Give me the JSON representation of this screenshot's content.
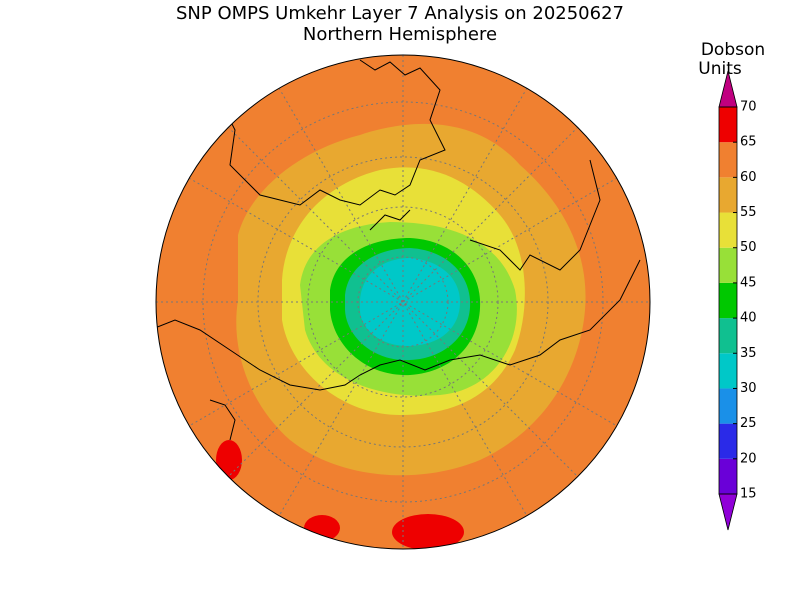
{
  "title": "SNP OMPS Umkehr Layer 7 Analysis on 20250627",
  "subtitle": "Northern Hemisphere",
  "colorbar": {
    "label_lines": [
      "Dobson",
      "Units"
    ],
    "ticks": [
      15,
      20,
      25,
      30,
      35,
      40,
      45,
      50,
      55,
      60,
      65,
      70
    ],
    "colors": [
      "#6a00d8",
      "#2a2ae8",
      "#1a90e8",
      "#00c8c8",
      "#10c090",
      "#00c800",
      "#98e038",
      "#e8e038",
      "#e8a830",
      "#f08030",
      "#ee0000"
    ],
    "under_color": "#9000d8",
    "over_color": "#c00080"
  }
}
